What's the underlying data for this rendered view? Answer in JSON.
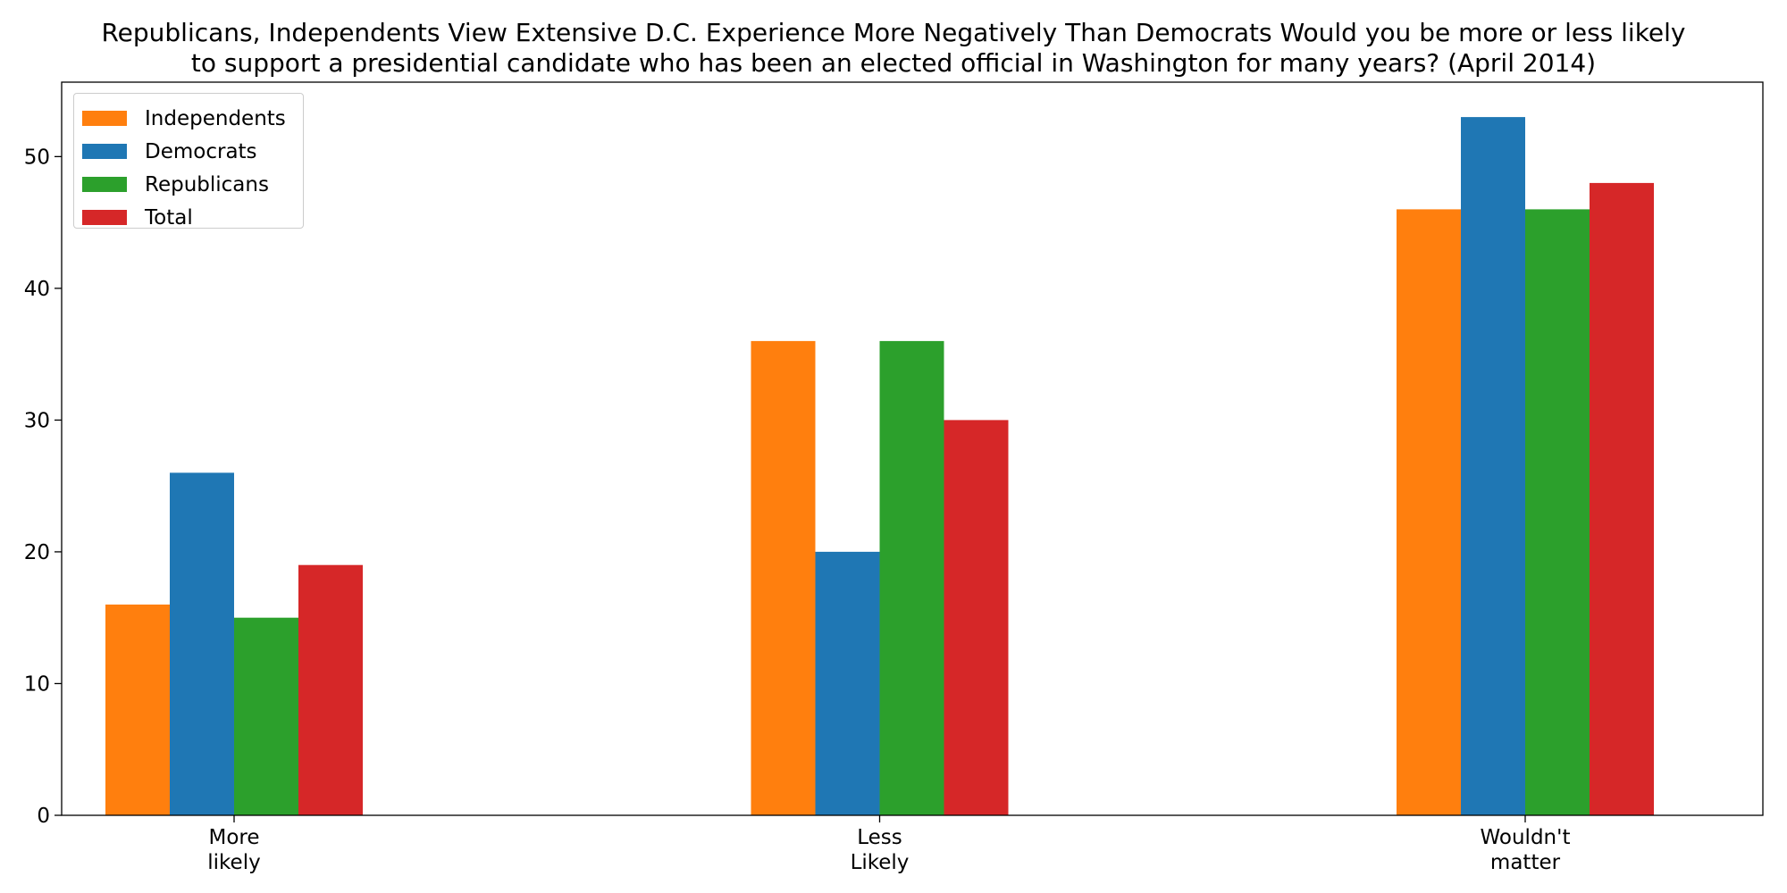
{
  "chart_data": {
    "type": "bar",
    "title_lines": [
      "Republicans, Independents View Extensive D.C. Experience More Negatively Than Democrats Would you be more or less likely",
      "to support a presidential candidate who has been an elected official in Washington for many years? (April 2014)"
    ],
    "categories": [
      [
        "More",
        "likely"
      ],
      [
        "Less",
        "Likely"
      ],
      [
        "Wouldn't",
        "matter"
      ]
    ],
    "series": [
      {
        "name": "Independents",
        "color": "#ff7f0e",
        "values": [
          16,
          36,
          46
        ]
      },
      {
        "name": "Democrats",
        "color": "#1f77b4",
        "values": [
          26,
          20,
          53
        ]
      },
      {
        "name": "Republicans",
        "color": "#2ca02c",
        "values": [
          15,
          36,
          46
        ]
      },
      {
        "name": "Total",
        "color": "#d62728",
        "values": [
          19,
          30,
          48
        ]
      }
    ],
    "yticks": [
      "0",
      "10",
      "20",
      "30",
      "40",
      "50"
    ],
    "ylim": [
      0,
      55.65
    ],
    "grid": false,
    "legend_position": "top-left"
  }
}
